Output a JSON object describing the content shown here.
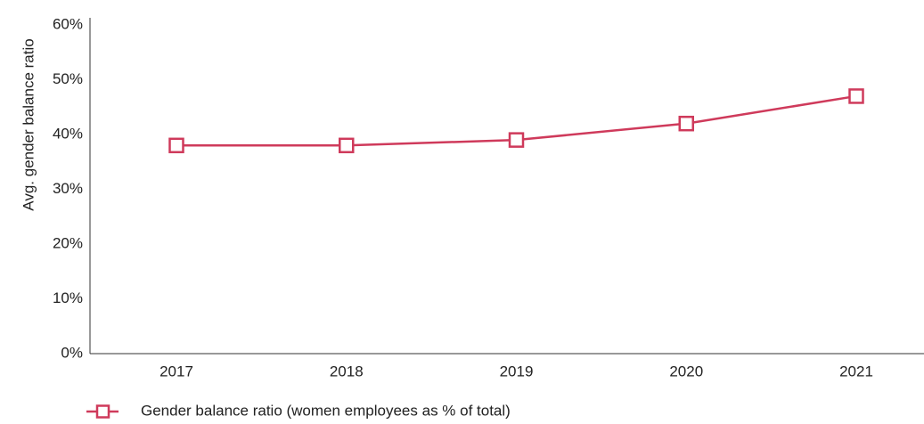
{
  "chart_data": {
    "type": "line",
    "ylabel": "Avg. gender balance ratio",
    "categories": [
      "2017",
      "2018",
      "2019",
      "2020",
      "2021"
    ],
    "series": [
      {
        "name": "Gender balance ratio (women employees as % of total)",
        "color": "#cf3a5b",
        "values": [
          38,
          38,
          39,
          42,
          47
        ]
      }
    ],
    "ylim": [
      0,
      60
    ],
    "yticks": [
      {
        "value": 0,
        "label": "0%"
      },
      {
        "value": 10,
        "label": "10%"
      },
      {
        "value": 20,
        "label": "20%"
      },
      {
        "value": 30,
        "label": "30%"
      },
      {
        "value": 40,
        "label": "40%"
      },
      {
        "value": 50,
        "label": "50%"
      },
      {
        "value": 60,
        "label": "60%"
      }
    ],
    "grid": false,
    "legend": "bottom"
  }
}
